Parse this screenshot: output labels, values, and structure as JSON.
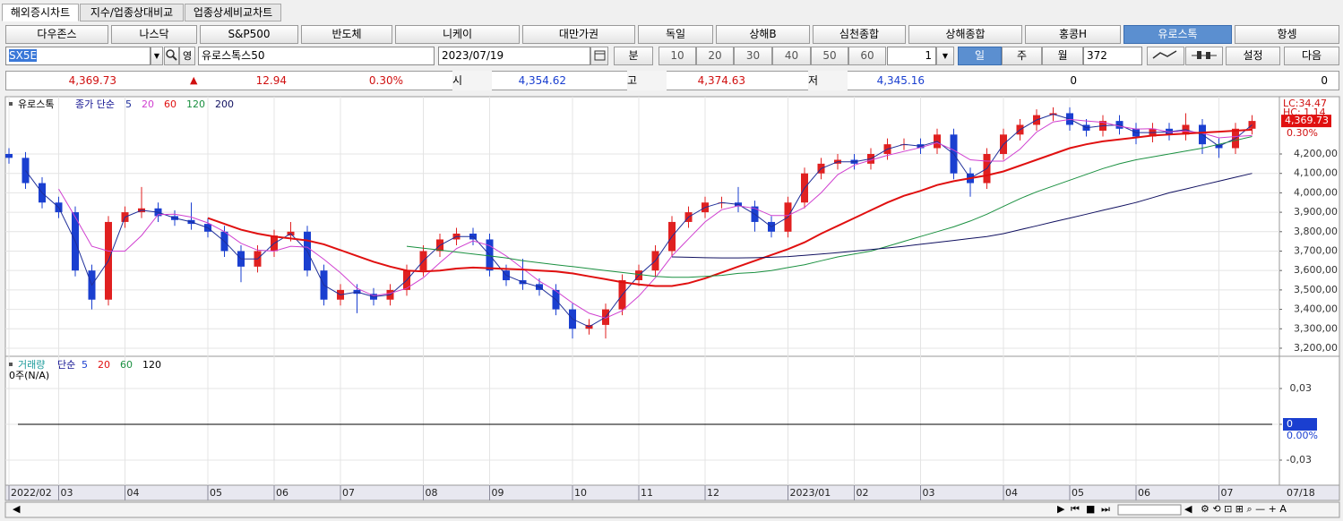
{
  "tabs": [
    "해외증시차트",
    "지수/업종상대비교",
    "업종상세비교차트"
  ],
  "markets": [
    "다우존스",
    "나스닥",
    "S&P500",
    "반도체",
    "니케이",
    "대만가권",
    "독일",
    "상해B",
    "심천종합",
    "상해종합",
    "홍콩H",
    "유로스톡",
    "항셍"
  ],
  "controls": {
    "code": "SX5E",
    "name": "유로스톡스50",
    "date": "2023/07/19",
    "minute": "분",
    "intervals": [
      "10",
      "20",
      "30",
      "40",
      "50",
      "60"
    ],
    "count": "1",
    "day": "일",
    "week": "주",
    "month": "월",
    "bars": "372",
    "settings": "설정",
    "next": "다음"
  },
  "quote": {
    "last": "4,369.73",
    "arrow": "▲",
    "change": "12.94",
    "pct": "0.30%",
    "open_label": "시",
    "open": "4,354.62",
    "high_label": "고",
    "high": "4,374.63",
    "low_label": "저",
    "low": "4,345.16",
    "vol1": "0",
    "vol2": "0"
  },
  "chart_data": [
    {
      "type": "candlestick",
      "title": "유로스톡",
      "ma_label": "종가 단순",
      "categories": [
        "2022/02",
        null,
        null,
        "03",
        null,
        null,
        null,
        "04",
        null,
        null,
        null,
        null,
        "05",
        null,
        null,
        null,
        "06",
        null,
        null,
        null,
        "07",
        null,
        null,
        null,
        null,
        "08",
        null,
        null,
        null,
        "09",
        null,
        null,
        null,
        null,
        "10",
        null,
        null,
        null,
        "11",
        null,
        null,
        null,
        "12",
        null,
        null,
        null,
        null,
        "2023/01",
        null,
        null,
        null,
        "02",
        null,
        null,
        null,
        "03",
        null,
        null,
        null,
        null,
        "04",
        null,
        null,
        null,
        "05",
        null,
        null,
        null,
        "06",
        null,
        null,
        null,
        null,
        "07",
        null,
        null
      ],
      "end_label": "07/18",
      "open": [
        4200,
        4180,
        4050,
        3950,
        3900,
        3600,
        3450,
        3850,
        3900,
        3920,
        3880,
        3860,
        3840,
        3800,
        3700,
        3620,
        3700,
        3780,
        3800,
        3600,
        3450,
        3500,
        3480,
        3450,
        3500,
        3600,
        3700,
        3760,
        3790,
        3760,
        3600,
        3550,
        3530,
        3500,
        3400,
        3300,
        3320,
        3400,
        3550,
        3600,
        3700,
        3850,
        3900,
        3950,
        3950,
        3930,
        3850,
        3800,
        3950,
        4100,
        4150,
        4170,
        4150,
        4200,
        4250,
        4250,
        4230,
        4300,
        4100,
        4050,
        4200,
        4300,
        4350,
        4400,
        4410,
        4350,
        4320,
        4370,
        4330,
        4290,
        4330,
        4300,
        4350,
        4250,
        4230,
        4330
      ],
      "high": [
        4230,
        4210,
        4080,
        3980,
        3930,
        3630,
        3880,
        3930,
        4030,
        3950,
        3910,
        3950,
        3870,
        3830,
        3730,
        3730,
        3810,
        3850,
        3830,
        3630,
        3530,
        3530,
        3510,
        3530,
        3630,
        3730,
        3790,
        3820,
        3820,
        3790,
        3630,
        3660,
        3560,
        3530,
        3430,
        3350,
        3430,
        3580,
        3630,
        3730,
        3880,
        3930,
        3980,
        3980,
        4030,
        3960,
        3880,
        3980,
        4130,
        4180,
        4200,
        4200,
        4230,
        4280,
        4280,
        4280,
        4330,
        4330,
        4130,
        4230,
        4330,
        4380,
        4430,
        4440,
        4440,
        4380,
        4400,
        4400,
        4360,
        4360,
        4360,
        4410,
        4380,
        4280,
        4360,
        4400
      ],
      "low": [
        4150,
        4020,
        3920,
        3870,
        3570,
        3400,
        3420,
        3820,
        3870,
        3850,
        3830,
        3810,
        3770,
        3670,
        3540,
        3590,
        3670,
        3750,
        3570,
        3420,
        3420,
        3380,
        3420,
        3420,
        3470,
        3570,
        3670,
        3730,
        3730,
        3570,
        3520,
        3500,
        3470,
        3370,
        3250,
        3270,
        3250,
        3370,
        3520,
        3570,
        3670,
        3820,
        3870,
        3920,
        3900,
        3800,
        3770,
        3770,
        3920,
        4070,
        4120,
        4120,
        4120,
        4170,
        4220,
        4200,
        4200,
        4070,
        3980,
        4020,
        4170,
        4270,
        4320,
        4370,
        4320,
        4290,
        4290,
        4300,
        4250,
        4260,
        4270,
        4270,
        4200,
        4180,
        4200,
        4300
      ],
      "close": [
        4180,
        4050,
        3950,
        3900,
        3600,
        3450,
        3850,
        3900,
        3920,
        3880,
        3860,
        3840,
        3800,
        3700,
        3620,
        3700,
        3780,
        3800,
        3600,
        3450,
        3500,
        3480,
        3450,
        3500,
        3600,
        3700,
        3760,
        3790,
        3760,
        3600,
        3550,
        3530,
        3500,
        3400,
        3300,
        3320,
        3400,
        3550,
        3600,
        3700,
        3850,
        3900,
        3950,
        3950,
        3930,
        3850,
        3800,
        3950,
        4100,
        4150,
        4170,
        4150,
        4200,
        4250,
        4250,
        4230,
        4300,
        4100,
        4050,
        4200,
        4300,
        4350,
        4400,
        4410,
        4350,
        4320,
        4370,
        4330,
        4290,
        4330,
        4300,
        4350,
        4250,
        4230,
        4330,
        4370
      ],
      "up_color": "#e02020",
      "down_color": "#1a3fd0",
      "series": [
        {
          "name": "5",
          "color": "#1f2f9a",
          "values": [
            null,
            4115,
            4000,
            3925,
            3750,
            3525,
            3650,
            3875,
            3910,
            3900,
            3870,
            3850,
            3820,
            3750,
            3660,
            3660,
            3740,
            3790,
            3700,
            3525,
            3475,
            3490,
            3465,
            3475,
            3550,
            3650,
            3730,
            3775,
            3775,
            3680,
            3575,
            3540,
            3515,
            3450,
            3350,
            3310,
            3360,
            3475,
            3575,
            3650,
            3775,
            3875,
            3925,
            3950,
            3940,
            3890,
            3825,
            3875,
            4025,
            4125,
            4160,
            4160,
            4175,
            4225,
            4250,
            4240,
            4265,
            4200,
            4075,
            4125,
            4250,
            4325,
            4375,
            4405,
            4380,
            4335,
            4345,
            4350,
            4310,
            4310,
            4315,
            4325,
            4300,
            4240,
            4280,
            4350
          ]
        },
        {
          "name": "20",
          "color": "#d040d0",
          "values": [
            null,
            null,
            null,
            4020,
            3875,
            3725,
            3700,
            3700,
            3780,
            3888,
            3890,
            3875,
            3845,
            3800,
            3740,
            3705,
            3700,
            3725,
            3720,
            3658,
            3588,
            3508,
            3470,
            3483,
            3508,
            3563,
            3640,
            3713,
            3753,
            3728,
            3675,
            3610,
            3545,
            3495,
            3433,
            3380,
            3355,
            3393,
            3468,
            3563,
            3675,
            3763,
            3850,
            3913,
            3933,
            3920,
            3883,
            3883,
            3925,
            4000,
            4093,
            4143,
            4168,
            4193,
            4213,
            4233,
            4258,
            4220,
            4170,
            4163,
            4163,
            4225,
            4313,
            4365,
            4378,
            4370,
            4363,
            4343,
            4328,
            4330,
            4313,
            4318,
            4308,
            4283,
            4290,
            4295
          ]
        },
        {
          "name": "60",
          "color": "#e01010",
          "values": [
            null,
            null,
            null,
            null,
            null,
            null,
            null,
            null,
            null,
            null,
            null,
            null,
            3870,
            3840,
            3810,
            3790,
            3775,
            3765,
            3755,
            3735,
            3705,
            3675,
            3645,
            3620,
            3600,
            3595,
            3600,
            3610,
            3615,
            3612,
            3608,
            3605,
            3600,
            3595,
            3585,
            3570,
            3555,
            3540,
            3528,
            3520,
            3520,
            3535,
            3560,
            3590,
            3620,
            3650,
            3680,
            3710,
            3745,
            3790,
            3830,
            3870,
            3910,
            3950,
            3985,
            4010,
            4040,
            4060,
            4075,
            4090,
            4110,
            4140,
            4170,
            4200,
            4230,
            4250,
            4265,
            4275,
            4285,
            4295,
            4300,
            4305,
            4310,
            4315,
            4320,
            4325
          ]
        },
        {
          "name": "120",
          "color": "#1a9040",
          "values": [
            null,
            null,
            null,
            null,
            null,
            null,
            null,
            null,
            null,
            null,
            null,
            null,
            null,
            null,
            null,
            null,
            null,
            null,
            null,
            null,
            null,
            null,
            null,
            null,
            3725,
            3715,
            3705,
            3695,
            3685,
            3675,
            3665,
            3650,
            3640,
            3630,
            3620,
            3610,
            3600,
            3590,
            3580,
            3570,
            3565,
            3565,
            3570,
            3575,
            3585,
            3590,
            3600,
            3615,
            3630,
            3650,
            3670,
            3685,
            3700,
            3725,
            3750,
            3775,
            3800,
            3825,
            3855,
            3890,
            3930,
            3970,
            4005,
            4035,
            4065,
            4095,
            4125,
            4150,
            4170,
            4185,
            4200,
            4215,
            4230,
            4250,
            4270,
            4290
          ]
        },
        {
          "name": "200",
          "color": "#101060",
          "values": [
            null,
            null,
            null,
            null,
            null,
            null,
            null,
            null,
            null,
            null,
            null,
            null,
            null,
            null,
            null,
            null,
            null,
            null,
            null,
            null,
            null,
            null,
            null,
            null,
            null,
            null,
            null,
            null,
            null,
            null,
            null,
            null,
            null,
            null,
            null,
            null,
            null,
            null,
            null,
            null,
            3670,
            3668,
            3666,
            3665,
            3665,
            3666,
            3668,
            3672,
            3678,
            3685,
            3692,
            3700,
            3708,
            3716,
            3725,
            3735,
            3745,
            3755,
            3765,
            3775,
            3790,
            3810,
            3830,
            3850,
            3870,
            3890,
            3910,
            3930,
            3950,
            3975,
            4000,
            4020,
            4040,
            4060,
            4080,
            4100
          ]
        }
      ],
      "ylim": [
        3163,
        4495
      ],
      "yticks": [
        {
          "value": 3200,
          "label": "3,200,00"
        },
        {
          "value": 3300,
          "label": "3,300,00"
        },
        {
          "value": 3400,
          "label": "3,400,00"
        },
        {
          "value": 3500,
          "label": "3,500,00"
        },
        {
          "value": 3600,
          "label": "3,600,00"
        },
        {
          "value": 3700,
          "label": "3,700,00"
        },
        {
          "value": 3800,
          "label": "3,800,00"
        },
        {
          "value": 3900,
          "label": "3,900,00"
        },
        {
          "value": 4000,
          "label": "4,000,00"
        },
        {
          "value": 4100,
          "label": "4,100,00"
        },
        {
          "value": 4200,
          "label": "4,200,00"
        }
      ],
      "annotations": [
        "LC:34.47",
        "HC: 1.14"
      ],
      "last_label": "4,369.73",
      "pct_label": "0.30%",
      "grid": true
    },
    {
      "type": "volume",
      "title": "거래량",
      "ma_label": "단순",
      "legend": [
        {
          "name": "5",
          "color": "#1a3fd0"
        },
        {
          "name": "20",
          "color": "#e01010"
        },
        {
          "name": "60",
          "color": "#1a9040"
        },
        {
          "name": "120",
          "color": "#000000"
        }
      ],
      "note": "0주(N/A)",
      "ylim": [
        -0.0495,
        0.05625
      ],
      "yticks": [
        {
          "value": 0.03,
          "label": "0,03"
        },
        {
          "value": 0,
          "label": "0"
        },
        {
          "value": -0.03,
          "label": "-0,03"
        }
      ],
      "pct_label": "0.00%",
      "grid": true
    }
  ]
}
